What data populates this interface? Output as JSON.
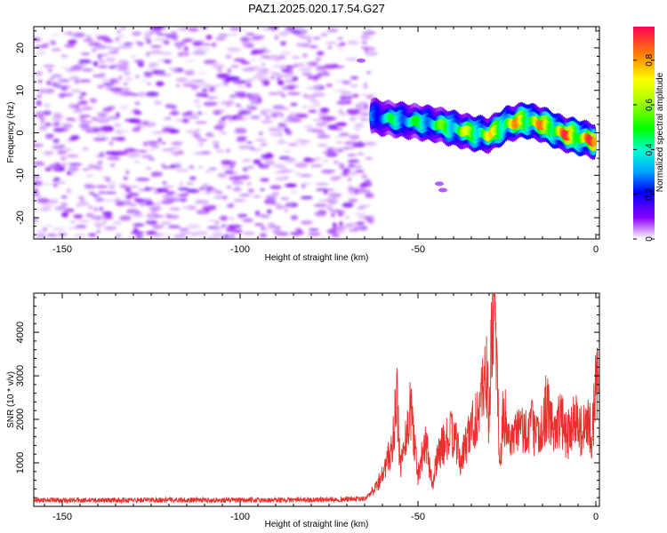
{
  "title": "PAZ1.2025.020.17.54.G27",
  "chart_data": [
    {
      "type": "heatmap",
      "xlabel": "Height of straight line (km)",
      "ylabel": "Frequency (Hz)",
      "xlim": [
        -158,
        1
      ],
      "ylim": [
        -25,
        25
      ],
      "xticks": [
        -150,
        -100,
        -50,
        0
      ],
      "yticks": [
        -20,
        -10,
        0,
        10,
        20
      ],
      "colorbar": {
        "label": "Normalized spectral amplitude",
        "range": [
          0,
          0.95
        ],
        "ticks": [
          0,
          0.2,
          0.4,
          0.6,
          0.8
        ]
      },
      "ridge": {
        "x": [
          -63,
          -60,
          -55,
          -50,
          -45,
          -40,
          -35,
          -30,
          -25,
          -20,
          -15,
          -10,
          -5,
          0
        ],
        "freq_hz": [
          4,
          3.5,
          3,
          2.5,
          2,
          1,
          0,
          -0.5,
          2,
          3,
          2,
          0,
          -1,
          -2
        ],
        "peak_amplitude": [
          0.35,
          0.45,
          0.5,
          0.5,
          0.55,
          0.65,
          0.7,
          0.75,
          0.8,
          0.85,
          0.85,
          0.9,
          0.95,
          0.9
        ]
      },
      "noise_region_x": [
        -158,
        -63
      ],
      "noise_amplitude": [
        0.05,
        0.12
      ]
    },
    {
      "type": "line",
      "xlabel": "Height of straight line (km)",
      "ylabel": "SNR (10 * v/v)",
      "xlim": [
        -158,
        1
      ],
      "ylim": [
        0,
        4900
      ],
      "xticks": [
        -150,
        -100,
        -50,
        0
      ],
      "yticks": [
        1000,
        2000,
        3000,
        4000
      ],
      "color": "#e8302e",
      "series": [
        {
          "x": [
            -158,
            -140,
            -120,
            -100,
            -80,
            -65,
            -62,
            -59,
            -57,
            -56,
            -55,
            -53,
            -52,
            -50,
            -48,
            -46,
            -44,
            -42,
            -40,
            -38,
            -36,
            -34,
            -32,
            -31,
            -30,
            -29,
            -28,
            -27,
            -26,
            -24,
            -22,
            -20,
            -18,
            -16,
            -14,
            -12,
            -10,
            -8,
            -6,
            -4,
            -2,
            -1,
            0,
            0.8
          ],
          "values": [
            150,
            140,
            150,
            140,
            150,
            170,
            400,
            900,
            1500,
            2500,
            900,
            1800,
            2300,
            700,
            1600,
            500,
            1300,
            1500,
            1700,
            1000,
            1600,
            2000,
            2500,
            3500,
            1800,
            4900,
            3900,
            700,
            2300,
            1300,
            1800,
            1700,
            1900,
            1500,
            2300,
            1800,
            2000,
            1600,
            2100,
            1700,
            1900,
            1600,
            2900,
            2700
          ]
        }
      ]
    }
  ]
}
